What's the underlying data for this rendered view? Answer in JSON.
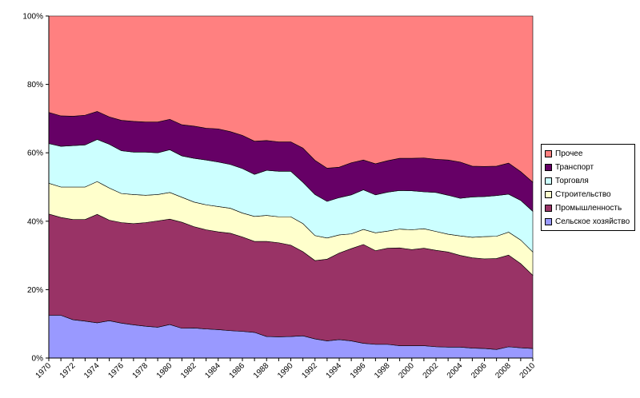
{
  "chart_data": {
    "type": "area",
    "stacked": true,
    "normalized": true,
    "x": [
      1970,
      1971,
      1972,
      1973,
      1974,
      1975,
      1976,
      1977,
      1978,
      1979,
      1980,
      1981,
      1982,
      1983,
      1984,
      1985,
      1986,
      1987,
      1988,
      1989,
      1990,
      1991,
      1992,
      1993,
      1994,
      1995,
      1996,
      1997,
      1998,
      1999,
      2000,
      2001,
      2002,
      2003,
      2004,
      2005,
      2006,
      2007,
      2008,
      2009,
      2010
    ],
    "x_tick_labels": [
      "1970",
      "1972",
      "1974",
      "1976",
      "1978",
      "1980",
      "1982",
      "1984",
      "1986",
      "1988",
      "1990",
      "1992",
      "1994",
      "1996",
      "1998",
      "2000",
      "2002",
      "2004",
      "2006",
      "2008",
      "2010"
    ],
    "y_tick_labels": [
      "0%",
      "20%",
      "40%",
      "60%",
      "80%",
      "100%"
    ],
    "ylim": [
      0,
      100
    ],
    "grid": false,
    "legend_position": "right",
    "series": [
      {
        "name": "Сельское хозяйство",
        "color": "#9999ff",
        "values": [
          12.5,
          12.5,
          11.2,
          10.8,
          10.3,
          10.9,
          10.2,
          9.7,
          9.3,
          9.0,
          9.8,
          8.7,
          8.8,
          8.5,
          8.3,
          8.0,
          7.8,
          7.5,
          6.3,
          6.2,
          6.3,
          6.5,
          5.6,
          5.0,
          5.4,
          5.0,
          4.3,
          4.0,
          4.0,
          3.6,
          3.6,
          3.6,
          3.3,
          3.2,
          3.2,
          2.9,
          2.8,
          2.5,
          3.3,
          3.0,
          2.8
        ]
      },
      {
        "name": "Промышленность",
        "color": "#993366",
        "values": [
          29.6,
          28.6,
          29.3,
          29.7,
          31.7,
          29.4,
          29.4,
          29.6,
          30.3,
          31.1,
          30.8,
          31.0,
          29.6,
          29.0,
          28.6,
          28.5,
          27.6,
          26.6,
          27.8,
          27.5,
          26.7,
          24.6,
          22.9,
          23.9,
          25.3,
          27.0,
          28.9,
          27.4,
          28.1,
          28.6,
          28.1,
          28.5,
          28.2,
          27.8,
          26.8,
          26.4,
          26.2,
          26.6,
          26.8,
          24.6,
          21.4
        ]
      },
      {
        "name": "Строительство",
        "color": "#ffffcc",
        "values": [
          9.0,
          8.9,
          9.5,
          9.5,
          9.6,
          9.4,
          8.5,
          8.5,
          8.0,
          7.7,
          7.8,
          7.3,
          7.2,
          7.3,
          7.4,
          7.3,
          7.0,
          7.3,
          7.6,
          7.6,
          8.3,
          8.2,
          7.3,
          6.2,
          5.3,
          4.3,
          4.4,
          5.2,
          5.0,
          5.5,
          5.8,
          5.7,
          5.5,
          5.2,
          5.7,
          6.0,
          6.5,
          6.5,
          6.7,
          6.9,
          6.8
        ]
      },
      {
        "name": "Торговля",
        "color": "#ccffff",
        "values": [
          11.6,
          11.9,
          12.1,
          12.3,
          12.3,
          12.8,
          12.5,
          12.4,
          12.6,
          12.2,
          12.5,
          12.1,
          12.8,
          13.1,
          13.0,
          12.8,
          13.0,
          12.3,
          13.2,
          13.3,
          13.3,
          12.1,
          12.0,
          10.7,
          10.9,
          11.4,
          11.6,
          11.1,
          11.4,
          11.3,
          11.4,
          10.8,
          11.4,
          11.4,
          11.0,
          11.8,
          11.7,
          11.9,
          11.1,
          11.6,
          11.9
        ]
      },
      {
        "name": "Транспорт",
        "color": "#660066",
        "values": [
          9.1,
          8.9,
          8.6,
          8.7,
          8.2,
          8.0,
          8.9,
          9.0,
          8.8,
          9.0,
          8.9,
          9.1,
          9.4,
          9.3,
          9.7,
          9.6,
          9.7,
          9.7,
          8.7,
          8.6,
          8.6,
          10.0,
          10.0,
          9.7,
          8.9,
          9.4,
          8.7,
          9.1,
          9.2,
          9.4,
          9.5,
          9.9,
          9.7,
          10.3,
          10.6,
          9.0,
          8.8,
          8.6,
          9.1,
          8.4,
          8.5
        ]
      },
      {
        "name": "Прочее",
        "color": "#ff8080",
        "values": [
          28.2,
          29.2,
          29.3,
          29.0,
          27.9,
          29.5,
          30.5,
          30.8,
          31.0,
          31.0,
          30.2,
          31.8,
          32.2,
          32.8,
          33.0,
          33.8,
          34.9,
          36.6,
          36.4,
          36.8,
          36.8,
          38.6,
          42.2,
          44.5,
          44.2,
          42.9,
          42.1,
          43.2,
          42.3,
          41.6,
          41.6,
          41.5,
          41.9,
          42.1,
          42.7,
          43.9,
          44.0,
          43.9,
          43.0,
          45.5,
          48.6
        ]
      }
    ]
  }
}
